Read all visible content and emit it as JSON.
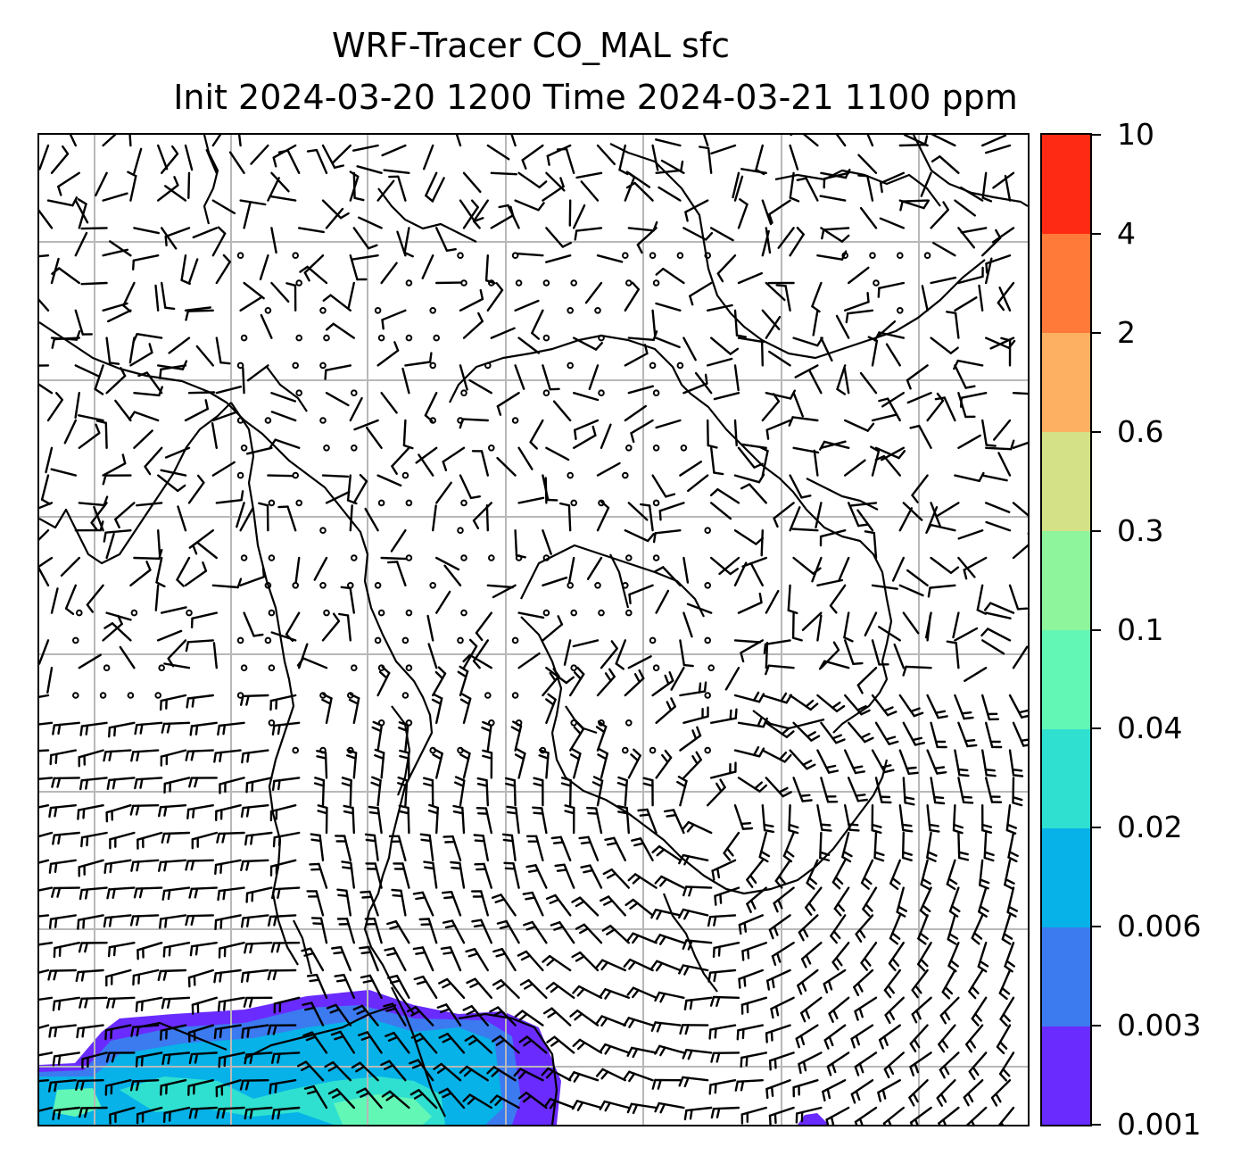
{
  "title": {
    "line1": "WRF-Tracer CO_MAL sfc",
    "line2": "Init 2024-03-20 1200 Time 2024-03-21 1100 ppm"
  },
  "colorbar": {
    "levels": [
      "0.001",
      "0.003",
      "0.006",
      "0.02",
      "0.04",
      "0.1",
      "0.3",
      "0.6",
      "2",
      "4",
      "10"
    ],
    "colors": [
      "#6a2bff",
      "#3c7af0",
      "#06b2e8",
      "#2fe0d0",
      "#63f7b6",
      "#8ef59d",
      "#d4e186",
      "#fdb062",
      "#ff7a38",
      "#ff2a13"
    ]
  },
  "map": {
    "background": "#ffffff",
    "gridline_color": "#b8b8b8",
    "coastline_color": "#000000",
    "barb_color": "#000000",
    "plume_region": "bottom-left",
    "plume_colors": [
      "#6a2bff",
      "#3c7af0",
      "#06b2e8",
      "#2fe0d0",
      "#63f7b6"
    ]
  }
}
